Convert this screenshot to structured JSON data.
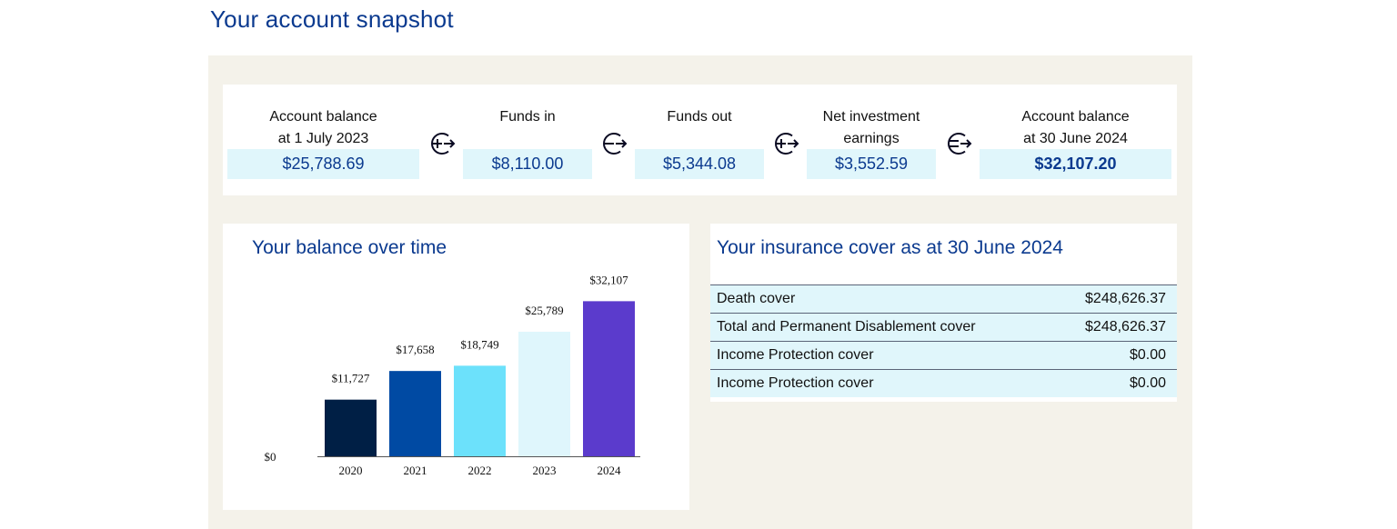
{
  "page": {
    "title": "Your account snapshot"
  },
  "summary": {
    "items": [
      {
        "label": "Account balance\nat 1 July 2023",
        "value": "$25,788.69"
      },
      {
        "label": "Funds in",
        "value": "$8,110.00"
      },
      {
        "label": "Funds out",
        "value": "$5,344.08"
      },
      {
        "label": "Net investment\nearnings",
        "value": "$3,552.59"
      },
      {
        "label": "Account balance\nat 30 June 2024",
        "value": "$32,107.20"
      }
    ],
    "operators": [
      "plus-icon",
      "minus-icon",
      "plus-icon",
      "equals-icon"
    ]
  },
  "chart": {
    "title": "Your balance over time"
  },
  "chart_data": {
    "type": "bar",
    "title": "Your balance over time",
    "categories": [
      "2020",
      "2021",
      "2022",
      "2023",
      "2024"
    ],
    "values": [
      11727,
      17658,
      18749,
      25789,
      32107
    ],
    "data_labels": [
      "$11,727",
      "$17,658",
      "$18,749",
      "$25,789",
      "$32,107"
    ],
    "colors": [
      "#001f45",
      "#004aa3",
      "#6ce1fb",
      "#dff6fc",
      "#5b3bcc"
    ],
    "y_zero_label": "$0",
    "ylim": [
      0,
      35000
    ],
    "grid": false,
    "legend": "none"
  },
  "insurance": {
    "title": "Your insurance cover as at 30 June 2024",
    "rows": [
      {
        "label": "Death cover",
        "amount": "$248,626.37"
      },
      {
        "label": "Total and Permanent Disablement cover",
        "amount": "$248,626.37"
      },
      {
        "label": "Income Protection cover",
        "amount": "$0.00"
      },
      {
        "label": "Income Protection cover",
        "amount": "$0.00"
      }
    ]
  },
  "colors": {
    "brand": "#0b3a8f",
    "panel": "#f4f2ea",
    "highlight": "#e0f6fb"
  }
}
